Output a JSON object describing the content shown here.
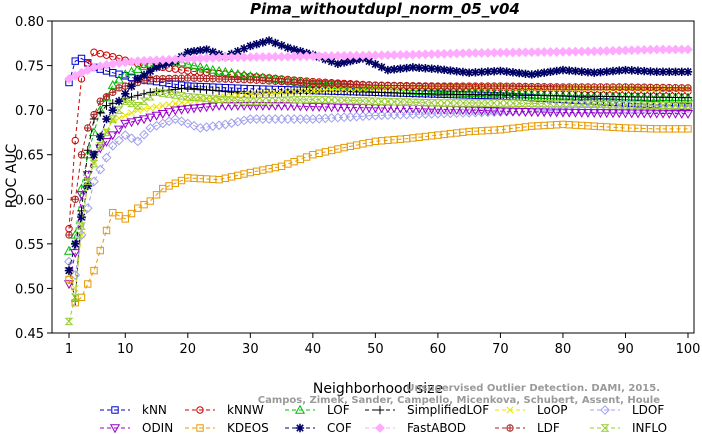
{
  "chart_data": {
    "type": "line",
    "title": "Pima_withoutdupl_norm_05_v04",
    "xlabel": "Neighborhood size",
    "ylabel": "ROC AUC",
    "xlim": [
      1,
      100
    ],
    "ylim": [
      0.45,
      0.8
    ],
    "xticks": [
      "1",
      "10",
      "20",
      "30",
      "40",
      "50",
      "60",
      "70",
      "80",
      "90",
      "100"
    ],
    "yticks": [
      "0.45",
      "0.50",
      "0.55",
      "0.60",
      "0.65",
      "0.70",
      "0.75",
      "0.80"
    ],
    "grid": false,
    "legend_position": "bottom",
    "watermark": [
      "Unsupervised Outlier Detection. DAMI, 2015.",
      "Campos, Zimek, Sander, Campello, Micenkova, Schubert, Assent, Houle"
    ],
    "series": [
      {
        "name": "kNN",
        "color": "#0000cc",
        "marker": "square",
        "dash": "4,3",
        "points": [
          [
            1,
            0.731
          ],
          [
            2,
            0.755
          ],
          [
            3,
            0.758
          ],
          [
            5,
            0.748
          ],
          [
            8,
            0.742
          ],
          [
            12,
            0.735
          ],
          [
            20,
            0.727
          ],
          [
            30,
            0.724
          ],
          [
            40,
            0.722
          ],
          [
            50,
            0.72
          ],
          [
            60,
            0.718
          ],
          [
            70,
            0.716
          ],
          [
            80,
            0.712
          ],
          [
            90,
            0.708
          ],
          [
            100,
            0.704
          ]
        ]
      },
      {
        "name": "kNNW",
        "color": "#cc0000",
        "marker": "circle",
        "dash": "4,3",
        "points": [
          [
            1,
            0.567
          ],
          [
            2,
            0.666
          ],
          [
            3,
            0.735
          ],
          [
            4,
            0.752
          ],
          [
            5,
            0.765
          ],
          [
            8,
            0.76
          ],
          [
            12,
            0.752
          ],
          [
            20,
            0.744
          ],
          [
            30,
            0.738
          ],
          [
            40,
            0.732
          ],
          [
            50,
            0.728
          ],
          [
            60,
            0.726
          ],
          [
            70,
            0.725
          ],
          [
            80,
            0.724
          ],
          [
            90,
            0.722
          ],
          [
            100,
            0.721
          ]
        ]
      },
      {
        "name": "LOF",
        "color": "#00bb00",
        "marker": "triangle-up",
        "dash": "4,3",
        "points": [
          [
            1,
            0.542
          ],
          [
            2,
            0.56
          ],
          [
            3,
            0.612
          ],
          [
            4,
            0.65
          ],
          [
            6,
            0.7
          ],
          [
            8,
            0.728
          ],
          [
            10,
            0.74
          ],
          [
            14,
            0.752
          ],
          [
            18,
            0.755
          ],
          [
            24,
            0.745
          ],
          [
            30,
            0.738
          ],
          [
            40,
            0.73
          ],
          [
            50,
            0.724
          ],
          [
            60,
            0.72
          ],
          [
            70,
            0.718
          ],
          [
            80,
            0.716
          ],
          [
            90,
            0.715
          ],
          [
            100,
            0.714
          ]
        ]
      },
      {
        "name": "SimplifiedLOF",
        "color": "#000000",
        "marker": "plus",
        "dash": "4,3",
        "points": [
          [
            1,
            0.523
          ],
          [
            2,
            0.486
          ],
          [
            3,
            0.587
          ],
          [
            4,
            0.655
          ],
          [
            5,
            0.69
          ],
          [
            7,
            0.705
          ],
          [
            10,
            0.713
          ],
          [
            14,
            0.72
          ],
          [
            20,
            0.725
          ],
          [
            30,
            0.718
          ],
          [
            40,
            0.722
          ],
          [
            50,
            0.72
          ],
          [
            60,
            0.718
          ],
          [
            70,
            0.717
          ],
          [
            80,
            0.716
          ],
          [
            90,
            0.715
          ],
          [
            100,
            0.714
          ]
        ]
      },
      {
        "name": "LoOP",
        "color": "#e6e600",
        "marker": "cross",
        "dash": "4,3",
        "points": [
          [
            1,
            0.515
          ],
          [
            2,
            0.5
          ],
          [
            3,
            0.56
          ],
          [
            4,
            0.62
          ],
          [
            6,
            0.665
          ],
          [
            8,
            0.688
          ],
          [
            12,
            0.7
          ],
          [
            16,
            0.705
          ],
          [
            22,
            0.712
          ],
          [
            30,
            0.718
          ],
          [
            40,
            0.722
          ],
          [
            50,
            0.725
          ],
          [
            60,
            0.726
          ],
          [
            70,
            0.726
          ],
          [
            80,
            0.725
          ],
          [
            90,
            0.725
          ],
          [
            100,
            0.724
          ]
        ]
      },
      {
        "name": "LDOF",
        "color": "#a0a0ee",
        "marker": "diamond",
        "dash": "4,3",
        "points": [
          [
            1,
            0.53
          ],
          [
            2,
            0.515
          ],
          [
            3,
            0.56
          ],
          [
            5,
            0.62
          ],
          [
            8,
            0.66
          ],
          [
            10,
            0.672
          ],
          [
            12,
            0.665
          ],
          [
            14,
            0.68
          ],
          [
            18,
            0.69
          ],
          [
            22,
            0.68
          ],
          [
            26,
            0.684
          ],
          [
            30,
            0.69
          ],
          [
            40,
            0.69
          ],
          [
            50,
            0.694
          ],
          [
            60,
            0.696
          ],
          [
            70,
            0.698
          ],
          [
            80,
            0.7
          ],
          [
            90,
            0.701
          ],
          [
            100,
            0.702
          ]
        ]
      },
      {
        "name": "ODIN",
        "color": "#9900cc",
        "marker": "triangle-down",
        "dash": "4,3",
        "points": [
          [
            1,
            0.505
          ],
          [
            2,
            0.54
          ],
          [
            3,
            0.605
          ],
          [
            5,
            0.65
          ],
          [
            8,
            0.672
          ],
          [
            10,
            0.685
          ],
          [
            13,
            0.69
          ],
          [
            18,
            0.7
          ],
          [
            25,
            0.705
          ],
          [
            35,
            0.705
          ],
          [
            45,
            0.703
          ],
          [
            55,
            0.702
          ],
          [
            65,
            0.7
          ],
          [
            75,
            0.698
          ],
          [
            85,
            0.697
          ],
          [
            100,
            0.696
          ]
        ]
      },
      {
        "name": "KDEOS",
        "color": "#e69900",
        "marker": "square",
        "dash": "4,3",
        "points": [
          [
            1,
            0.51
          ],
          [
            2,
            0.484
          ],
          [
            3,
            0.49
          ],
          [
            5,
            0.52
          ],
          [
            7,
            0.565
          ],
          [
            8,
            0.585
          ],
          [
            10,
            0.578
          ],
          [
            12,
            0.59
          ],
          [
            14,
            0.598
          ],
          [
            16,
            0.612
          ],
          [
            20,
            0.624
          ],
          [
            25,
            0.622
          ],
          [
            30,
            0.63
          ],
          [
            35,
            0.637
          ],
          [
            40,
            0.65
          ],
          [
            45,
            0.658
          ],
          [
            50,
            0.665
          ],
          [
            55,
            0.668
          ],
          [
            60,
            0.672
          ],
          [
            65,
            0.676
          ],
          [
            70,
            0.678
          ],
          [
            75,
            0.682
          ],
          [
            80,
            0.684
          ],
          [
            85,
            0.682
          ],
          [
            90,
            0.68
          ],
          [
            95,
            0.679
          ],
          [
            100,
            0.679
          ]
        ]
      },
      {
        "name": "LDF",
        "color": "#aa2222",
        "marker": "circle-plus",
        "dash": "4,3",
        "points": [
          [
            1,
            0.56
          ],
          [
            2,
            0.6
          ],
          [
            3,
            0.65
          ],
          [
            4,
            0.68
          ],
          [
            6,
            0.71
          ],
          [
            9,
            0.725
          ],
          [
            14,
            0.735
          ],
          [
            20,
            0.736
          ],
          [
            30,
            0.734
          ],
          [
            40,
            0.73
          ],
          [
            50,
            0.728
          ],
          [
            60,
            0.727
          ],
          [
            70,
            0.727
          ],
          [
            80,
            0.726
          ],
          [
            90,
            0.726
          ],
          [
            100,
            0.725
          ]
        ]
      },
      {
        "name": "COF",
        "color": "#000066",
        "marker": "asterisk",
        "dash": "4,3",
        "points": [
          [
            1,
            0.52
          ],
          [
            3,
            0.58
          ],
          [
            5,
            0.65
          ],
          [
            7,
            0.69
          ],
          [
            9,
            0.71
          ],
          [
            12,
            0.735
          ],
          [
            15,
            0.748
          ],
          [
            18,
            0.755
          ],
          [
            20,
            0.765
          ],
          [
            23,
            0.768
          ],
          [
            26,
            0.76
          ],
          [
            30,
            0.772
          ],
          [
            33,
            0.778
          ],
          [
            36,
            0.77
          ],
          [
            40,
            0.762
          ],
          [
            44,
            0.752
          ],
          [
            48,
            0.758
          ],
          [
            52,
            0.745
          ],
          [
            56,
            0.748
          ],
          [
            60,
            0.746
          ],
          [
            65,
            0.742
          ],
          [
            70,
            0.744
          ],
          [
            75,
            0.74
          ],
          [
            80,
            0.745
          ],
          [
            85,
            0.742
          ],
          [
            90,
            0.745
          ],
          [
            95,
            0.743
          ],
          [
            100,
            0.743
          ]
        ]
      },
      {
        "name": "FastABOD",
        "color": "#ffaaff",
        "marker": "diamond-filled",
        "dash": "4,3",
        "points": [
          [
            1,
            0.735
          ],
          [
            3,
            0.742
          ],
          [
            5,
            0.748
          ],
          [
            8,
            0.752
          ],
          [
            12,
            0.755
          ],
          [
            18,
            0.757
          ],
          [
            25,
            0.759
          ],
          [
            35,
            0.76
          ],
          [
            45,
            0.761
          ],
          [
            55,
            0.762
          ],
          [
            65,
            0.764
          ],
          [
            75,
            0.765
          ],
          [
            85,
            0.766
          ],
          [
            95,
            0.768
          ],
          [
            100,
            0.768
          ]
        ]
      },
      {
        "name": "INFLO",
        "color": "#99cc33",
        "marker": "hourglass",
        "dash": "4,3",
        "points": [
          [
            1,
            0.463
          ],
          [
            2,
            0.49
          ],
          [
            3,
            0.57
          ],
          [
            4,
            0.62
          ],
          [
            6,
            0.66
          ],
          [
            8,
            0.69
          ],
          [
            10,
            0.71
          ],
          [
            12,
            0.705
          ],
          [
            15,
            0.72
          ],
          [
            20,
            0.715
          ],
          [
            25,
            0.712
          ],
          [
            30,
            0.71
          ],
          [
            40,
            0.712
          ],
          [
            50,
            0.71
          ],
          [
            60,
            0.708
          ],
          [
            70,
            0.708
          ],
          [
            80,
            0.707
          ],
          [
            90,
            0.706
          ],
          [
            100,
            0.705
          ]
        ]
      }
    ]
  }
}
